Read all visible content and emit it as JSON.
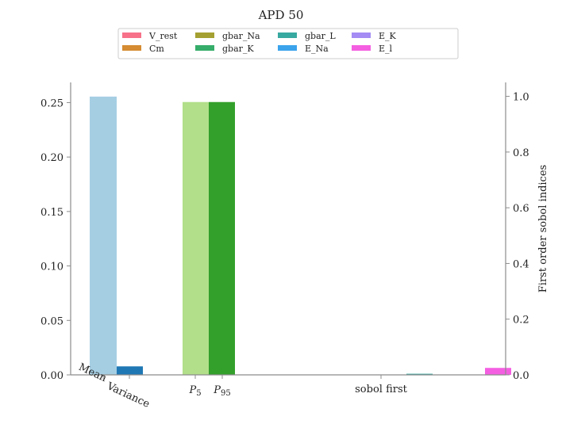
{
  "chart_data": {
    "type": "bar",
    "title": "APD 50",
    "left_axis": {
      "ylim": [
        0,
        0.2685
      ],
      "ticks": [
        0.0,
        0.05,
        0.1,
        0.15,
        0.2,
        0.25
      ],
      "tick_labels": [
        "0.00",
        "0.05",
        "0.10",
        "0.15",
        "0.20",
        "0.25"
      ]
    },
    "right_axis": {
      "label": "First order sobol indices",
      "ylim": [
        0,
        1.05
      ],
      "ticks": [
        0.0,
        0.2,
        0.4,
        0.6,
        0.8,
        1.0
      ],
      "tick_labels": [
        "0.0",
        "0.2",
        "0.4",
        "0.6",
        "0.8",
        "1.0"
      ]
    },
    "statistics": [
      {
        "name": "Mean",
        "value": 0.2555,
        "color": "#a6cee3"
      },
      {
        "name": "Variance",
        "value": 0.0078,
        "color": "#1f78b4"
      },
      {
        "name": "P5",
        "value": 0.2505,
        "color": "#b2df8a"
      },
      {
        "name": "P95",
        "value": 0.2505,
        "color": "#33a02c"
      }
    ],
    "x_tick_labels": {
      "mean": "Mean",
      "variance": "Variance",
      "p5_base": "P",
      "p5_sub": "5",
      "p95_base": "P",
      "p95_sub": "95",
      "sobol": "sobol first"
    },
    "sobol_first": [
      {
        "name": "V_rest",
        "value": 0.0,
        "color": "#f77189"
      },
      {
        "name": "Cm",
        "value": 0.0,
        "color": "#d58c32"
      },
      {
        "name": "gbar_Na",
        "value": 0.0,
        "color": "#a4a031"
      },
      {
        "name": "gbar_K",
        "value": 0.0,
        "color": "#36ad6a"
      },
      {
        "name": "gbar_L",
        "value": 0.004,
        "color": "#38a9a0"
      },
      {
        "name": "E_Na",
        "value": 0.0,
        "color": "#3ba3ec"
      },
      {
        "name": "E_K",
        "value": 0.0,
        "color": "#a48cf4"
      },
      {
        "name": "E_l",
        "value": 0.025,
        "color": "#f45fe1"
      }
    ],
    "legend": {
      "placement": "top-center",
      "columns": 5,
      "entries": [
        "V_rest",
        "Cm",
        "gbar_Na",
        "gbar_K",
        "gbar_L",
        "E_Na",
        "E_K",
        "E_l"
      ]
    },
    "grid": false
  }
}
